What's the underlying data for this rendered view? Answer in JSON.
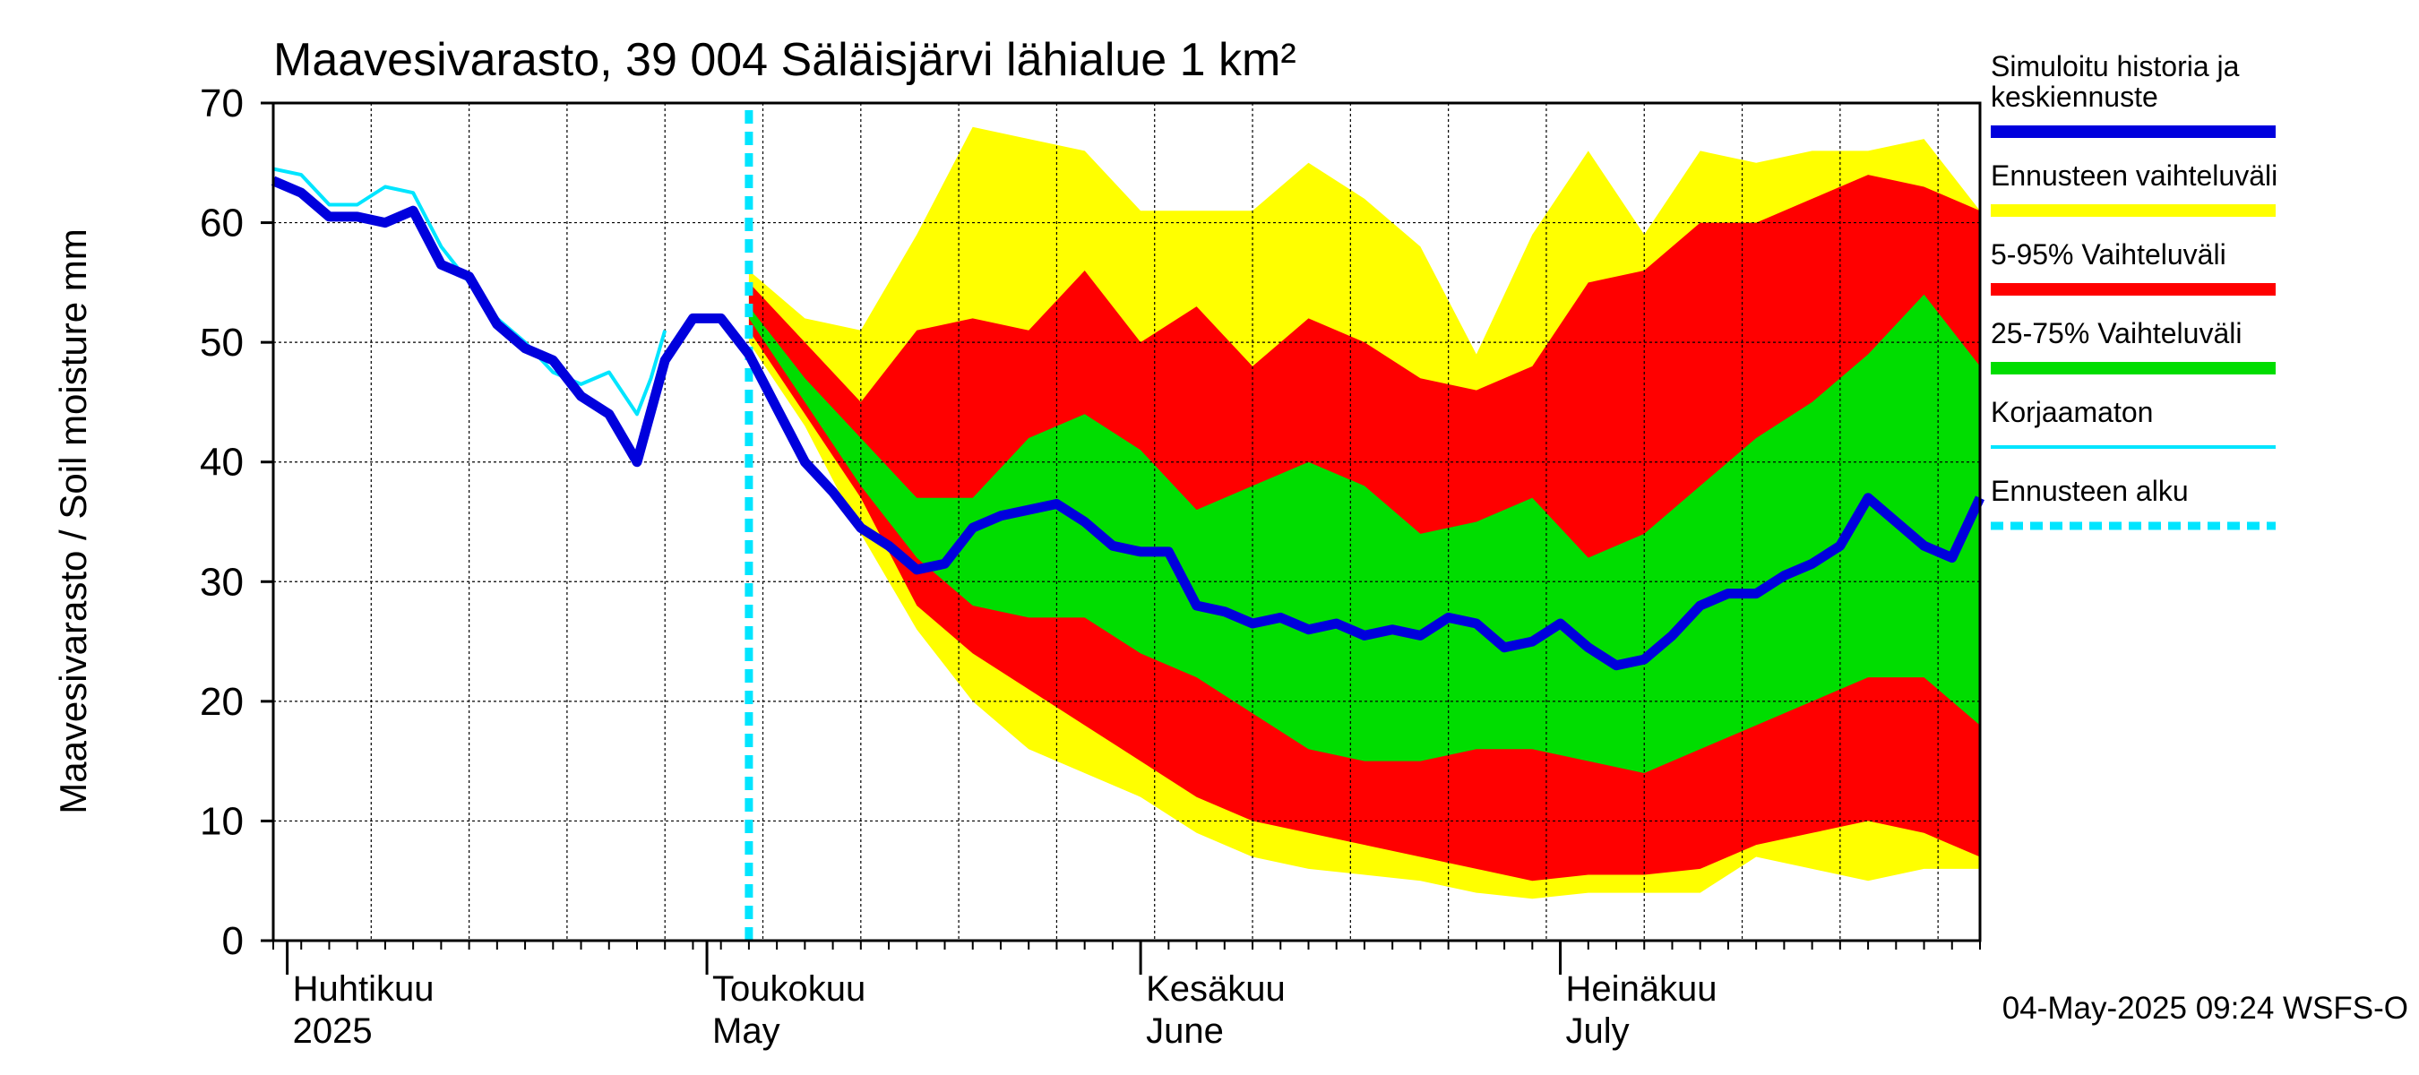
{
  "chart_data": {
    "type": "area",
    "title": "Maavesivarasto, 39 004 Säläisjärvi lähialue 1 km²",
    "ylabel": "Maavesivarasto / Soil moisture   mm",
    "xlabel": "",
    "ylim": [
      0,
      70
    ],
    "y_ticks": [
      "0",
      "10",
      "20",
      "30",
      "40",
      "50",
      "60",
      "70"
    ],
    "x_range": [
      "2025-03-31",
      "2025-07-31"
    ],
    "x_month_labels": [
      {
        "date": "2025-04-01",
        "fi": "Huhtikuu",
        "en": "2025"
      },
      {
        "date": "2025-05-01",
        "fi": "Toukokuu",
        "en": "May"
      },
      {
        "date": "2025-06-01",
        "fi": "Kesäkuu",
        "en": "June"
      },
      {
        "date": "2025-07-01",
        "fi": "Heinäkuu",
        "en": "July"
      }
    ],
    "grid": true,
    "legend_position": "right",
    "forecast_start": "2025-05-04",
    "legend": [
      {
        "label": "Simuloitu historia ja keskiennuste",
        "color": "#0000dd",
        "style": "thick"
      },
      {
        "label": "Ennusteen vaihteluväli",
        "color": "#ffff00",
        "style": "thick"
      },
      {
        "label": "5-95% Vaihteluväli",
        "color": "#ff0000",
        "style": "thick"
      },
      {
        "label": "25-75% Vaihteluväli",
        "color": "#00dd00",
        "style": "thick"
      },
      {
        "label": "Korjaamaton",
        "color": "#00e5ff",
        "style": "thin"
      },
      {
        "label": "Ennusteen alku",
        "color": "#00e5ff",
        "style": "dashed"
      }
    ],
    "series": [
      {
        "name": "Simuloitu historia ja keskiennuste",
        "color": "#0000dd",
        "x": [
          "2025-03-31",
          "2025-04-02",
          "2025-04-04",
          "2025-04-06",
          "2025-04-08",
          "2025-04-10",
          "2025-04-12",
          "2025-04-14",
          "2025-04-16",
          "2025-04-18",
          "2025-04-20",
          "2025-04-22",
          "2025-04-24",
          "2025-04-26",
          "2025-04-28",
          "2025-04-30",
          "2025-05-02",
          "2025-05-04",
          "2025-05-06",
          "2025-05-08",
          "2025-05-10",
          "2025-05-12",
          "2025-05-14",
          "2025-05-16",
          "2025-05-18",
          "2025-05-20",
          "2025-05-22",
          "2025-05-24",
          "2025-05-26",
          "2025-05-28",
          "2025-05-30",
          "2025-06-01",
          "2025-06-03",
          "2025-06-05",
          "2025-06-07",
          "2025-06-09",
          "2025-06-11",
          "2025-06-13",
          "2025-06-15",
          "2025-06-17",
          "2025-06-19",
          "2025-06-21",
          "2025-06-23",
          "2025-06-25",
          "2025-06-27",
          "2025-06-29",
          "2025-07-01",
          "2025-07-03",
          "2025-07-05",
          "2025-07-07",
          "2025-07-09",
          "2025-07-11",
          "2025-07-13",
          "2025-07-15",
          "2025-07-17",
          "2025-07-19",
          "2025-07-21",
          "2025-07-23",
          "2025-07-25",
          "2025-07-27",
          "2025-07-29",
          "2025-07-31"
        ],
        "y": [
          63.5,
          62.5,
          60.5,
          60.5,
          60,
          61,
          56.5,
          55.5,
          51.5,
          49.5,
          48.5,
          45.5,
          44,
          40,
          48.5,
          52,
          52,
          49,
          44.5,
          40,
          37.5,
          34.5,
          33,
          31,
          31.5,
          34.5,
          35.5,
          36,
          36.5,
          35,
          33,
          32.5,
          32.5,
          28,
          27.5,
          26.5,
          27,
          26,
          26.5,
          25.5,
          26,
          25.5,
          27,
          26.5,
          24.5,
          25,
          26.5,
          24.5,
          23,
          23.5,
          25.5,
          28,
          29,
          29,
          30.5,
          31.5,
          33,
          37,
          35,
          33,
          32,
          37
        ]
      },
      {
        "name": "Korjaamaton",
        "color": "#00e5ff",
        "x": [
          "2025-03-31",
          "2025-04-02",
          "2025-04-04",
          "2025-04-06",
          "2025-04-08",
          "2025-04-10",
          "2025-04-12",
          "2025-04-14",
          "2025-04-16",
          "2025-04-18",
          "2025-04-20",
          "2025-04-22",
          "2025-04-24",
          "2025-04-26",
          "2025-04-27",
          "2025-04-28"
        ],
        "y": [
          64.5,
          64,
          61.5,
          61.5,
          63,
          62.5,
          58,
          55,
          52,
          50,
          47.5,
          46.5,
          47.5,
          44,
          47,
          51
        ]
      },
      {
        "name": "Ennusteen vaihteluväli",
        "color": "#ffff00",
        "x": [
          "2025-05-04",
          "2025-05-08",
          "2025-05-12",
          "2025-05-16",
          "2025-05-20",
          "2025-05-24",
          "2025-05-28",
          "2025-06-01",
          "2025-06-05",
          "2025-06-09",
          "2025-06-13",
          "2025-06-17",
          "2025-06-21",
          "2025-06-25",
          "2025-06-29",
          "2025-07-03",
          "2025-07-07",
          "2025-07-11",
          "2025-07-15",
          "2025-07-19",
          "2025-07-23",
          "2025-07-27",
          "2025-07-31"
        ],
        "upper": [
          56,
          52,
          51,
          59,
          68,
          67,
          66,
          61,
          61,
          61,
          65,
          62,
          58,
          49,
          59,
          66,
          59,
          66,
          65,
          66,
          66,
          67,
          61
        ],
        "lower": [
          50,
          43,
          34,
          26,
          20,
          16,
          14,
          12,
          9,
          7,
          6,
          5.5,
          5,
          4,
          3.5,
          4,
          4,
          4,
          7,
          6,
          5,
          6,
          6
        ]
      },
      {
        "name": "5-95% Vaihteluväli",
        "color": "#ff0000",
        "x": [
          "2025-05-04",
          "2025-05-08",
          "2025-05-12",
          "2025-05-16",
          "2025-05-20",
          "2025-05-24",
          "2025-05-28",
          "2025-06-01",
          "2025-06-05",
          "2025-06-09",
          "2025-06-13",
          "2025-06-17",
          "2025-06-21",
          "2025-06-25",
          "2025-06-29",
          "2025-07-03",
          "2025-07-07",
          "2025-07-11",
          "2025-07-15",
          "2025-07-19",
          "2025-07-23",
          "2025-07-27",
          "2025-07-31"
        ],
        "upper": [
          55,
          50,
          45,
          51,
          52,
          51,
          56,
          50,
          53,
          48,
          52,
          50,
          47,
          46,
          48,
          55,
          56,
          60,
          60,
          62,
          64,
          63,
          61
        ],
        "lower": [
          51,
          44,
          37,
          28,
          24,
          21,
          18,
          15,
          12,
          10,
          9,
          8,
          7,
          6,
          5,
          5.5,
          5.5,
          6,
          8,
          9,
          10,
          9,
          7
        ]
      },
      {
        "name": "25-75% Vaihteluväli",
        "color": "#00dd00",
        "x": [
          "2025-05-04",
          "2025-05-08",
          "2025-05-12",
          "2025-05-16",
          "2025-05-20",
          "2025-05-24",
          "2025-05-28",
          "2025-06-01",
          "2025-06-05",
          "2025-06-09",
          "2025-06-13",
          "2025-06-17",
          "2025-06-21",
          "2025-06-25",
          "2025-06-29",
          "2025-07-03",
          "2025-07-07",
          "2025-07-11",
          "2025-07-15",
          "2025-07-19",
          "2025-07-23",
          "2025-07-27",
          "2025-07-31"
        ],
        "upper": [
          53,
          47,
          42,
          37,
          37,
          42,
          44,
          41,
          36,
          38,
          40,
          38,
          34,
          35,
          37,
          32,
          34,
          38,
          42,
          45,
          49,
          54,
          48
        ],
        "lower": [
          52,
          45,
          38,
          32,
          28,
          27,
          27,
          24,
          22,
          19,
          16,
          15,
          15,
          16,
          16,
          15,
          14,
          16,
          18,
          20,
          22,
          22,
          18
        ]
      }
    ]
  },
  "footer": {
    "timestamp": "04-May-2025 09:24 WSFS-O"
  }
}
